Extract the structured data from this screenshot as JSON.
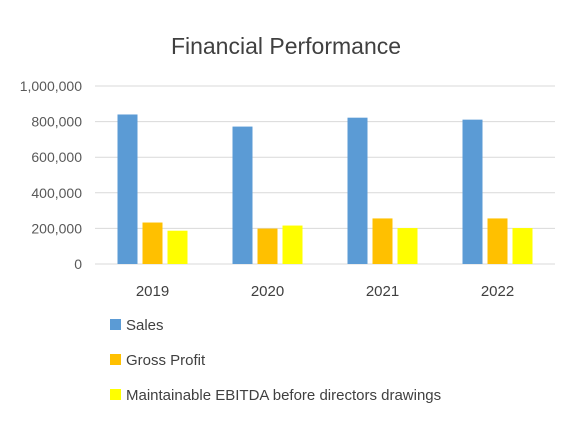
{
  "chart_data": {
    "type": "bar",
    "title": "Financial Performance",
    "xlabel": "",
    "ylabel": "",
    "categories": [
      "2019",
      "2020",
      "2021",
      "2022"
    ],
    "ylim": [
      0,
      1000000
    ],
    "yticks": [
      0,
      200000,
      400000,
      600000,
      800000,
      1000000
    ],
    "ytick_labels": [
      "0",
      "200,000",
      "400,000",
      "600,000",
      "800,000",
      "1,000,000"
    ],
    "grid": true,
    "legend_position": "bottom",
    "series": [
      {
        "name": "Sales",
        "color": "#5B9BD5",
        "values": [
          840000,
          772000,
          822000,
          811000
        ]
      },
      {
        "name": "Gross Profit",
        "color": "#FFC000",
        "values": [
          233000,
          199000,
          256000,
          256000
        ]
      },
      {
        "name": "Maintainable EBITDA before directors drawings",
        "color": "#FFFF00",
        "values": [
          187000,
          216000,
          202000,
          202000
        ]
      }
    ]
  }
}
